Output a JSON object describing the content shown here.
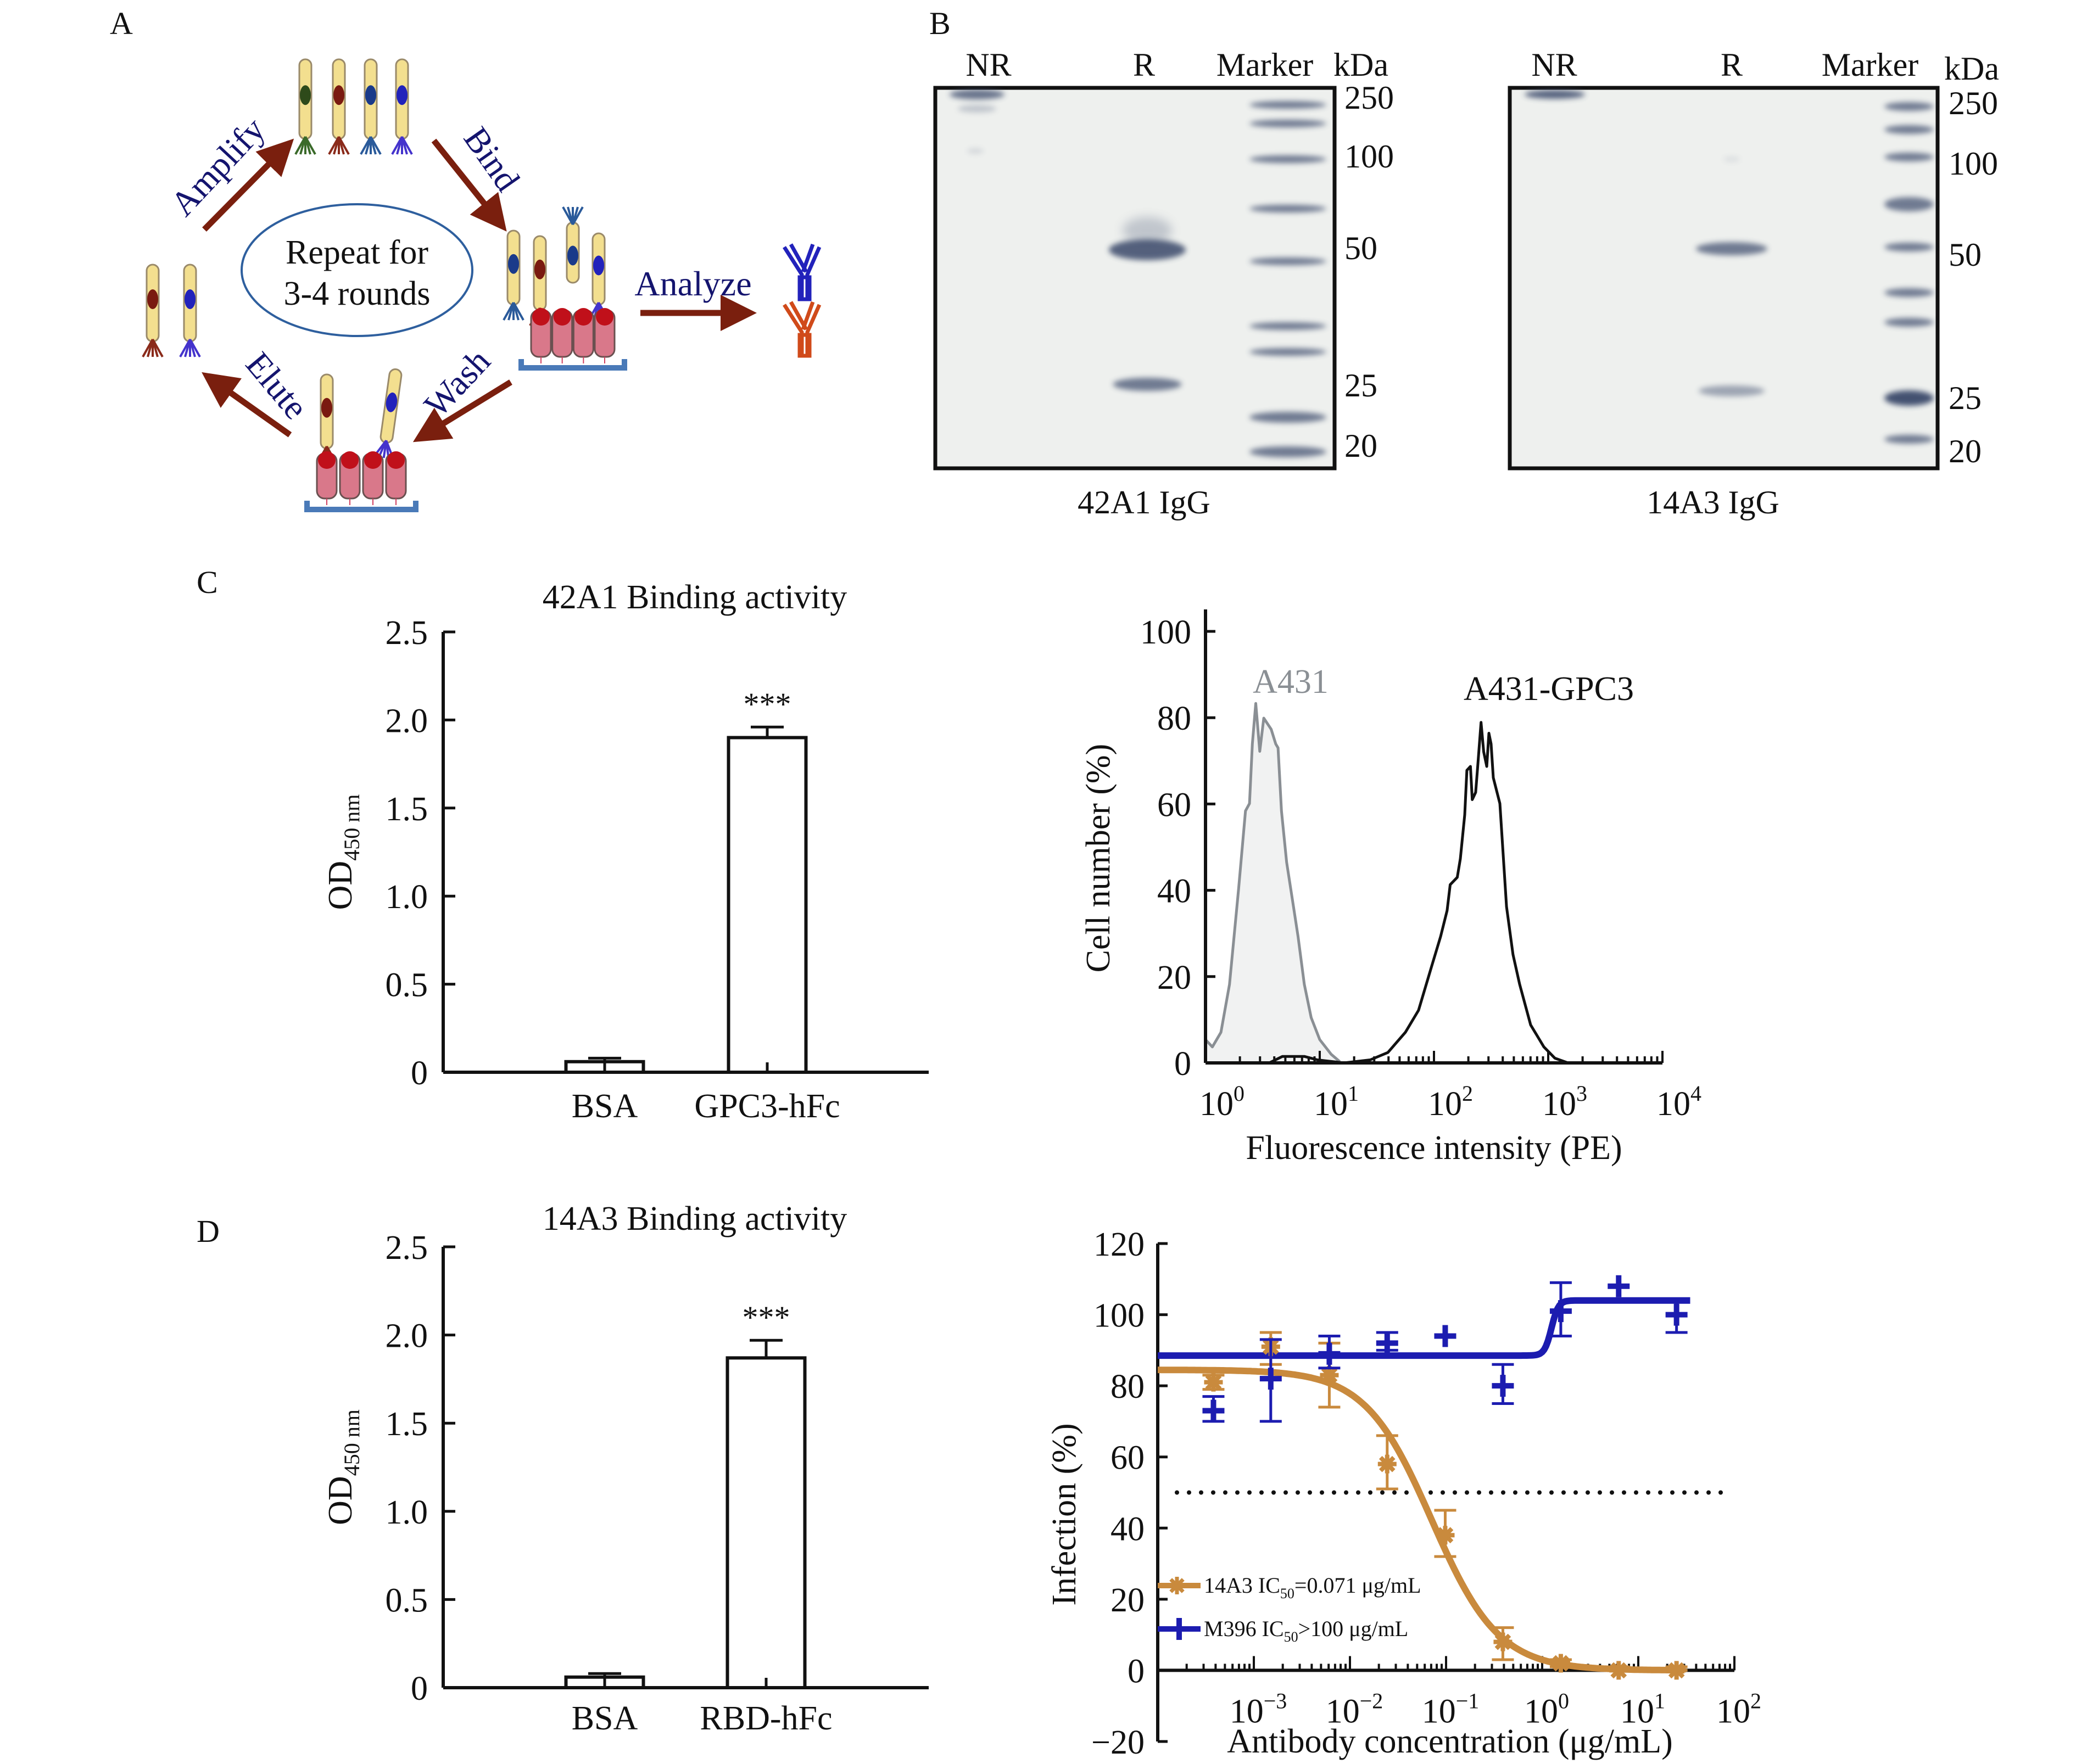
{
  "figure": {
    "panel_labels": {
      "a": "A",
      "b": "B",
      "c": "C",
      "d": "D"
    }
  },
  "panel_a": {
    "center_text_line1": "Repeat for",
    "center_text_line2": "3-4 rounds",
    "steps": {
      "amplify": "Amplify",
      "bind": "Bind",
      "wash": "Wash",
      "elute": "Elute",
      "analyze": "Analyze"
    },
    "colors": {
      "arrow": "#7a1f0e",
      "step_text": "#14146e",
      "phage_body": "#f3df8f",
      "target": "#d9788a",
      "plate": "#4a7ab8",
      "ellipse": "#2e5f9e",
      "antibody_blue": "#2222bb",
      "antibody_orange": "#d04a1a"
    }
  },
  "panel_b": {
    "gels": [
      {
        "caption": "42A1 IgG",
        "lanes": [
          "NR",
          "R",
          "Marker"
        ],
        "unit": "kDa",
        "marker_labels": [
          "250",
          "100",
          "50",
          "25",
          "20"
        ]
      },
      {
        "caption": "14A3 IgG",
        "lanes": [
          "NR",
          "R",
          "Marker"
        ],
        "unit": "kDa",
        "marker_labels": [
          "250",
          "100",
          "50",
          "25",
          "20"
        ]
      }
    ]
  },
  "chart_data": [
    {
      "id": "c_left",
      "type": "bar",
      "title": "42A1 Binding activity",
      "ylabel_main": "OD",
      "ylabel_sub": "450 nm",
      "xlabel": "",
      "categories": [
        "BSA",
        "GPC3-hFc"
      ],
      "values": [
        0.06,
        1.9
      ],
      "errors": [
        0.02,
        0.06
      ],
      "significance": [
        "",
        "***"
      ],
      "ylim": [
        0,
        2.5
      ],
      "yticks": [
        0,
        0.5,
        1.0,
        1.5,
        2.0,
        2.5
      ],
      "ytick_labels": [
        "0",
        "0.5",
        "1.0",
        "1.5",
        "2.0",
        "2.5"
      ],
      "grid": false
    },
    {
      "id": "c_right",
      "type": "area",
      "title": "",
      "xlabel": "Fluorescence intensity (PE)",
      "ylabel": "Cell number (%)",
      "xscale": "log",
      "xlim_log10": [
        0,
        4
      ],
      "ylim": [
        0,
        100
      ],
      "yticks": [
        0,
        20,
        40,
        60,
        80,
        100
      ],
      "ytick_labels": [
        "0",
        "20",
        "40",
        "60",
        "80",
        "100"
      ],
      "xtick_labels": [
        {
          "base": "10",
          "exp": "0"
        },
        {
          "base": "10",
          "exp": "1"
        },
        {
          "base": "10",
          "exp": "2"
        },
        {
          "base": "10",
          "exp": "3"
        },
        {
          "base": "10",
          "exp": "4"
        }
      ],
      "series": [
        {
          "name": "A431",
          "color": "#8a8f94",
          "fill": "#f1f2f2",
          "log10_x": [
            0,
            0.06,
            0.135,
            0.21,
            0.29,
            0.35,
            0.385,
            0.41,
            0.44,
            0.475,
            0.51,
            0.575,
            0.615,
            0.635,
            0.665,
            0.71,
            0.77,
            0.81,
            0.865,
            0.925,
            1.0,
            1.1,
            1.175
          ],
          "y": [
            5.4,
            3.7,
            7.1,
            18.2,
            40.4,
            58.4,
            60.1,
            73.9,
            83.3,
            72.2,
            79.9,
            77.3,
            73.9,
            73.0,
            58.4,
            46.5,
            36.2,
            29.3,
            18.2,
            10.5,
            5.4,
            2.0,
            0.3
          ]
        },
        {
          "name": "A431-GPC3",
          "color": "#111111",
          "fill": "none",
          "log10_x": [
            0.558,
            0.673,
            0.865,
            0.98,
            1.212,
            1.442,
            1.596,
            1.75,
            1.865,
            1.981,
            2.058,
            2.115,
            2.142,
            2.204,
            2.231,
            2.269,
            2.288,
            2.319,
            2.335,
            2.365,
            2.385,
            2.412,
            2.435,
            2.462,
            2.481,
            2.5,
            2.519,
            2.577,
            2.635,
            2.692,
            2.75,
            2.846,
            2.962,
            3.058,
            3.173
          ],
          "y": [
            0,
            1.5,
            1.5,
            0.7,
            0,
            0.7,
            2.4,
            7.1,
            12.2,
            22.5,
            29.3,
            35.3,
            41.3,
            43.0,
            47.3,
            57.5,
            67.8,
            68.7,
            61.0,
            62.7,
            69.5,
            78.9,
            72.1,
            68.7,
            76.4,
            73.9,
            66.1,
            60.1,
            36.2,
            25.1,
            18.2,
            8.8,
            3.7,
            1.1,
            0
          ]
        }
      ],
      "annotations": [
        "A431",
        "A431-GPC3"
      ],
      "grid": false
    },
    {
      "id": "d_left",
      "type": "bar",
      "title": "14A3 Binding activity",
      "ylabel_main": "OD",
      "ylabel_sub": "450 nm",
      "xlabel": "",
      "categories": [
        "BSA",
        "RBD-hFc"
      ],
      "values": [
        0.06,
        1.87
      ],
      "errors": [
        0.02,
        0.1
      ],
      "significance": [
        "",
        "***"
      ],
      "ylim": [
        0,
        2.5
      ],
      "yticks": [
        0,
        0.5,
        1.0,
        1.5,
        2.0,
        2.5
      ],
      "ytick_labels": [
        "0",
        "0.5",
        "1.0",
        "1.5",
        "2.0",
        "2.5"
      ],
      "grid": false
    },
    {
      "id": "d_right",
      "type": "scatter",
      "title": "",
      "xlabel": "Antibody concentration (μg/mL)",
      "ylabel": "Infection (%)",
      "xscale": "log",
      "xlim": [
        0.0001,
        100
      ],
      "ylim": [
        -20,
        120
      ],
      "yticks": [
        -20,
        0,
        20,
        40,
        60,
        80,
        100,
        120
      ],
      "ytick_labels": [
        "−20",
        "0",
        "20",
        "40",
        "60",
        "80",
        "100",
        "120"
      ],
      "xtick_labels": [
        {
          "base": "10",
          "exp": "−3"
        },
        {
          "base": "10",
          "exp": "−2"
        },
        {
          "base": "10",
          "exp": "−1"
        },
        {
          "base": "10",
          "exp": "0"
        },
        {
          "base": "10",
          "exp": "1"
        },
        {
          "base": "10",
          "exp": "2"
        }
      ],
      "reference_line_y": 50,
      "series": [
        {
          "name": "14A3",
          "legend_prefix": "14A3 IC",
          "legend_sub": "50",
          "legend_suffix": "=0.071 μg/mL",
          "color": "#c98a3d",
          "marker": "asterisk",
          "x": [
            0.00038,
            0.0015,
            0.0061,
            0.0244,
            0.098,
            0.39,
            1.5625,
            6.25,
            25
          ],
          "y": [
            81,
            91,
            83,
            58,
            38,
            8,
            2,
            0,
            0
          ],
          "err_low": [
            79,
            86,
            74,
            51,
            32,
            3,
            1,
            0,
            0
          ],
          "err_high": [
            83,
            95,
            92,
            66,
            45,
            12,
            3,
            1,
            1
          ],
          "fit": {
            "model": "4PL",
            "top": 84.5,
            "bottom": 0,
            "ic50": 0.071,
            "hill": 1.25
          }
        },
        {
          "name": "M396",
          "legend_prefix": "M396 IC",
          "legend_sub": "50",
          "legend_suffix": ">100 μg/mL",
          "color": "#1c1cb0",
          "marker": "plus",
          "x": [
            0.00038,
            0.0015,
            0.0061,
            0.0244,
            0.098,
            0.39,
            1.5625,
            6.25,
            25
          ],
          "y": [
            73,
            82,
            89,
            92,
            94,
            80,
            101,
            108,
            100
          ],
          "err_low": [
            70,
            70,
            85,
            90,
            94,
            75,
            94,
            108,
            95
          ],
          "err_high": [
            77,
            93,
            94,
            95,
            94,
            86,
            109,
            108,
            104
          ],
          "fit": {
            "model": "step",
            "low": 88.5,
            "high": 104,
            "midpoint": 1.25,
            "hill": 12
          }
        }
      ],
      "grid": false
    }
  ]
}
